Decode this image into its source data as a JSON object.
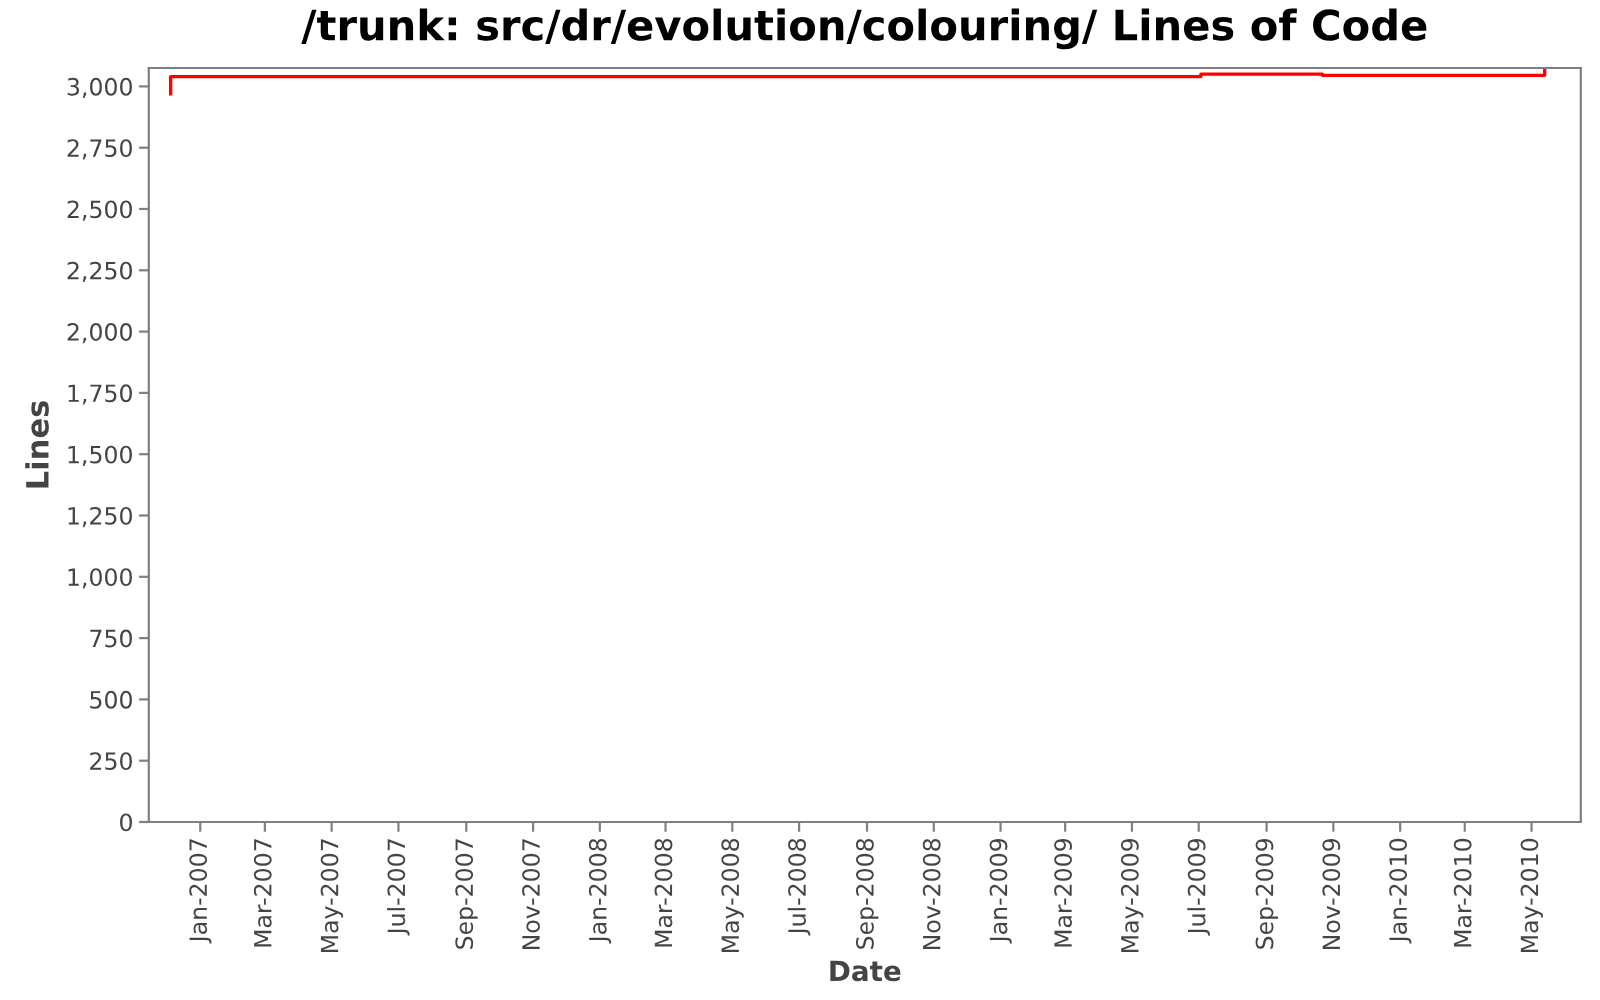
{
  "chart_data": {
    "type": "step",
    "title": "/trunk: src/dr/evolution/colouring/ Lines of Code",
    "xlabel": "Date",
    "ylabel": "Lines",
    "x": [
      "2006-12-05",
      "2006-12-05",
      "2009-07-03",
      "2009-10-22",
      "2010-05-13"
    ],
    "series": [
      {
        "color": "#ff0000",
        "values": [
          2970,
          3040,
          3050,
          3045,
          3070
        ]
      }
    ],
    "xlim": [
      "2006-11-15",
      "2010-06-15"
    ],
    "xticks": [
      {
        "value": "2007-01-01",
        "label": "Jan-2007"
      },
      {
        "value": "2007-03-01",
        "label": "Mar-2007"
      },
      {
        "value": "2007-05-01",
        "label": "May-2007"
      },
      {
        "value": "2007-07-01",
        "label": "Jul-2007"
      },
      {
        "value": "2007-09-01",
        "label": "Sep-2007"
      },
      {
        "value": "2007-11-01",
        "label": "Nov-2007"
      },
      {
        "value": "2008-01-01",
        "label": "Jan-2008"
      },
      {
        "value": "2008-03-01",
        "label": "Mar-2008"
      },
      {
        "value": "2008-05-01",
        "label": "May-2008"
      },
      {
        "value": "2008-07-01",
        "label": "Jul-2008"
      },
      {
        "value": "2008-09-01",
        "label": "Sep-2008"
      },
      {
        "value": "2008-11-01",
        "label": "Nov-2008"
      },
      {
        "value": "2009-01-01",
        "label": "Jan-2009"
      },
      {
        "value": "2009-03-01",
        "label": "Mar-2009"
      },
      {
        "value": "2009-05-01",
        "label": "May-2009"
      },
      {
        "value": "2009-07-01",
        "label": "Jul-2009"
      },
      {
        "value": "2009-09-01",
        "label": "Sep-2009"
      },
      {
        "value": "2009-11-01",
        "label": "Nov-2009"
      },
      {
        "value": "2010-01-01",
        "label": "Jan-2010"
      },
      {
        "value": "2010-03-01",
        "label": "Mar-2010"
      },
      {
        "value": "2010-05-01",
        "label": "May-2010"
      }
    ],
    "ylim": [
      0,
      3075
    ],
    "yticks": [
      0,
      250,
      500,
      750,
      {
        "value": 1000,
        "label": "1,000"
      },
      {
        "value": 1250,
        "label": "1,250"
      },
      {
        "value": 1500,
        "label": "1,500"
      },
      {
        "value": 1750,
        "label": "1,750"
      },
      {
        "value": 2000,
        "label": "2,000"
      },
      {
        "value": 2250,
        "label": "2,250"
      },
      {
        "value": 2500,
        "label": "2,500"
      },
      {
        "value": 2750,
        "label": "2,750"
      },
      {
        "value": 3000,
        "label": "3,000"
      }
    ],
    "grid": false,
    "legend": false
  }
}
